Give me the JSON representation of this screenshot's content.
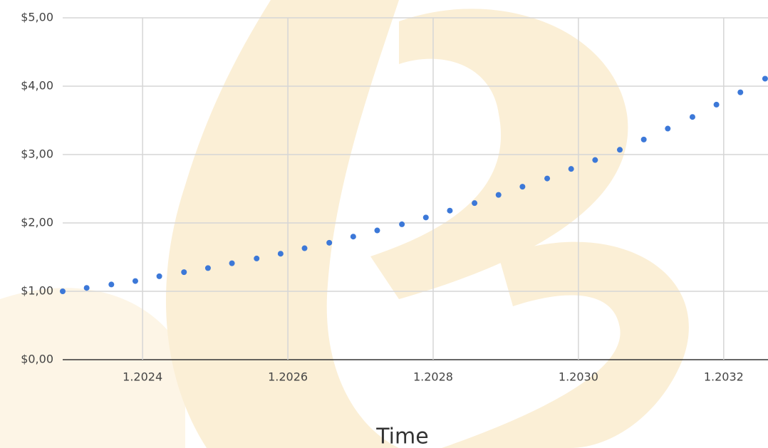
{
  "chart_data": {
    "type": "scatter",
    "x_label": "Time",
    "x": [
      2022.9,
      2023.23,
      2023.57,
      2023.9,
      2024.23,
      2024.57,
      2024.9,
      2025.23,
      2025.57,
      2025.9,
      2026.23,
      2026.57,
      2026.9,
      2027.23,
      2027.57,
      2027.9,
      2028.23,
      2028.57,
      2028.9,
      2029.23,
      2029.57,
      2029.9,
      2030.23,
      2030.57,
      2030.9,
      2031.23,
      2031.57,
      2031.9,
      2032.23,
      2032.57
    ],
    "values": [
      1.0,
      1.05,
      1.1,
      1.15,
      1.22,
      1.28,
      1.34,
      1.41,
      1.48,
      1.55,
      1.63,
      1.71,
      1.8,
      1.89,
      1.98,
      2.08,
      2.18,
      2.29,
      2.41,
      2.53,
      2.65,
      2.79,
      2.92,
      3.07,
      3.22,
      3.38,
      3.55,
      3.73,
      3.91,
      4.11
    ],
    "color": "#3c78d8",
    "xlim": [
      2022.9,
      2032.61
    ],
    "xticks": [
      {
        "value": 2024,
        "label": "1.2024"
      },
      {
        "value": 2026,
        "label": "1.2026"
      },
      {
        "value": 2028,
        "label": "1.2028"
      },
      {
        "value": 2030,
        "label": "1.2030"
      },
      {
        "value": 2032,
        "label": "1.2032"
      }
    ],
    "ylim": [
      0,
      5
    ],
    "yticks": [
      {
        "value": 0,
        "label": "$0,00"
      },
      {
        "value": 1,
        "label": "$1,00"
      },
      {
        "value": 2,
        "label": "$2,00"
      },
      {
        "value": 3,
        "label": "$3,00"
      },
      {
        "value": 4,
        "label": "$4,00"
      },
      {
        "value": 5,
        "label": "$5,00"
      }
    ],
    "grid": true
  }
}
